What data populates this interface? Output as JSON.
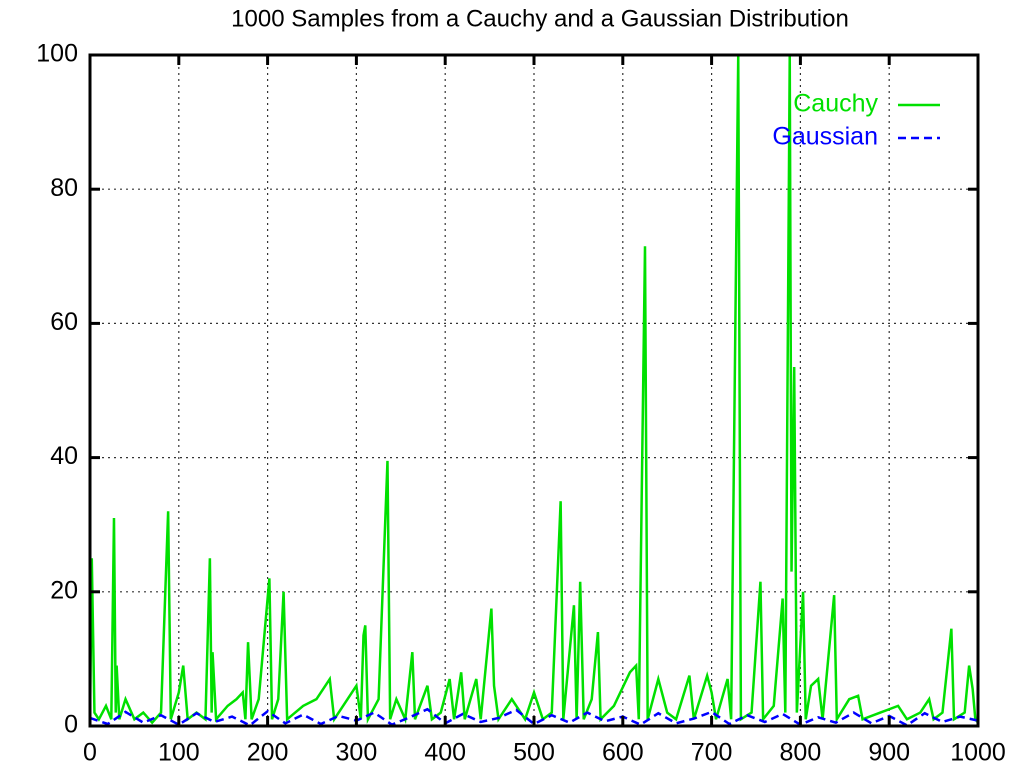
{
  "chart_data": {
    "type": "line",
    "title": "1000 Samples from a Cauchy and a Gaussian Distribution",
    "xlim": [
      0,
      1000
    ],
    "xticks": [
      0,
      100,
      200,
      300,
      400,
      500,
      600,
      700,
      800,
      900,
      1000
    ],
    "ylim": [
      0,
      100
    ],
    "yticks": [
      0,
      20,
      40,
      60,
      80,
      100
    ],
    "grid": true,
    "legend": "top right",
    "series": [
      {
        "name": "Cauchy",
        "color": "#00e000",
        "line_style": "solid",
        "x": [
          0,
          2,
          5,
          10,
          18,
          24,
          27,
          29,
          30,
          33,
          40,
          50,
          60,
          70,
          80,
          88,
          91,
          100,
          105,
          110,
          120,
          130,
          135,
          137,
          138,
          142,
          155,
          165,
          172,
          175,
          178,
          182,
          190,
          202,
          205,
          212,
          218,
          222,
          240,
          255,
          270,
          275,
          290,
          300,
          305,
          308,
          310,
          313,
          325,
          335,
          338,
          345,
          355,
          363,
          366,
          380,
          385,
          395,
          405,
          410,
          418,
          422,
          435,
          440,
          452,
          455,
          460,
          475,
          490,
          500,
          510,
          520,
          530,
          533,
          545,
          548,
          552,
          556,
          565,
          572,
          575,
          590,
          608,
          615,
          618,
          625,
          628,
          640,
          650,
          660,
          675,
          680,
          695,
          700,
          705,
          718,
          722,
          730,
          733,
          745,
          755,
          758,
          770,
          780,
          783,
          788,
          790,
          793,
          796,
          803,
          806,
          812,
          820,
          825,
          838,
          841,
          855,
          865,
          870,
          890,
          910,
          920,
          935,
          945,
          950,
          960,
          970,
          973,
          985,
          990,
          994,
          997,
          1000
        ],
        "values": [
          1,
          25,
          2,
          1,
          3,
          1,
          31,
          2,
          9,
          1,
          4,
          1,
          2,
          0.5,
          2,
          32,
          1,
          5,
          9,
          1,
          2,
          1,
          25,
          2,
          11,
          1,
          3,
          4,
          5,
          1,
          12.5,
          1,
          4,
          22,
          1,
          4,
          20,
          1,
          3,
          4,
          7,
          1,
          4,
          6,
          1,
          13.5,
          15,
          1,
          4,
          39.5,
          1,
          4,
          1,
          11,
          1,
          6,
          1,
          2,
          7,
          1,
          8,
          1,
          7,
          1,
          17.5,
          6,
          1,
          4,
          1,
          5,
          1,
          2,
          33.5,
          1,
          18,
          1,
          21.5,
          1,
          4,
          14,
          1,
          3,
          8,
          9,
          1,
          71.5,
          1,
          7,
          2,
          1,
          7.5,
          1,
          7.5,
          5,
          1,
          7,
          1,
          100,
          1,
          2,
          21.5,
          1,
          3,
          19,
          2,
          100,
          23,
          53.5,
          2,
          20,
          1,
          6,
          7,
          1,
          19.5,
          1,
          4,
          4.5,
          1,
          2,
          3,
          1,
          2,
          4,
          1,
          2,
          14.5,
          1,
          2,
          9,
          5.5,
          1,
          0.5
        ]
      },
      {
        "name": "Gaussian",
        "color": "#0000ff",
        "line_style": "dashed",
        "x": [
          0,
          20,
          40,
          60,
          80,
          100,
          120,
          140,
          160,
          180,
          200,
          220,
          240,
          260,
          280,
          300,
          320,
          340,
          360,
          380,
          400,
          420,
          440,
          460,
          480,
          500,
          520,
          540,
          560,
          580,
          600,
          620,
          640,
          660,
          680,
          700,
          720,
          740,
          760,
          780,
          800,
          820,
          840,
          860,
          880,
          900,
          920,
          940,
          960,
          980,
          1000
        ],
        "values": [
          1.2,
          0.3,
          2.1,
          0.5,
          1.6,
          0.2,
          1.9,
          0.6,
          1.4,
          0.1,
          2.2,
          0.4,
          1.7,
          0.3,
          1.5,
          0.8,
          2.0,
          0.2,
          1.3,
          2.5,
          0.4,
          1.8,
          0.6,
          1.2,
          2.4,
          0.3,
          1.6,
          0.5,
          2.0,
          0.7,
          1.4,
          0.2,
          1.9,
          0.4,
          1.1,
          2.1,
          0.3,
          1.6,
          0.6,
          1.8,
          0.2,
          1.3,
          0.5,
          2.0,
          0.4,
          1.5,
          0.1,
          1.9,
          0.6,
          1.4,
          0.8
        ]
      }
    ]
  }
}
